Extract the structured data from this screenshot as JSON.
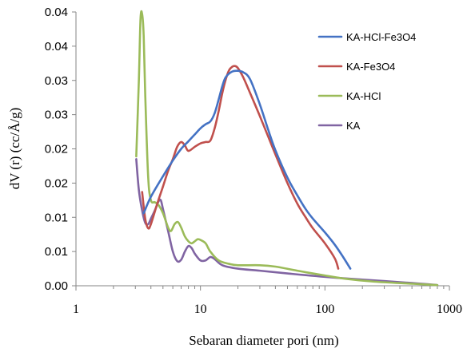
{
  "chart_data": {
    "type": "line",
    "title": "",
    "xlabel": "Sebaran diameter pori  (nm)",
    "ylabel": "dV (r) (cc/Å/g)",
    "x_scale": "log",
    "xlim": [
      1,
      1000
    ],
    "ylim": [
      0,
      0.04
    ],
    "x_ticks": [
      1,
      10,
      100,
      1000
    ],
    "x_tick_labels": [
      "1",
      "10",
      "100",
      "1000"
    ],
    "y_ticks": [
      0,
      0.005,
      0.01,
      0.015,
      0.02,
      0.025,
      0.03,
      0.035,
      0.04
    ],
    "y_tick_labels": [
      "0.00",
      "0.01",
      "0.01",
      "0.02",
      "0.02",
      "0.03",
      "0.03",
      "0.04",
      "0.04"
    ],
    "grid": false,
    "legend_position": "top-right",
    "series": [
      {
        "name": "KA-HCl-Fe3O4",
        "color": "#4472c4",
        "points": [
          [
            3.5,
            0.0106
          ],
          [
            4.0,
            0.013
          ],
          [
            5.0,
            0.016
          ],
          [
            6.0,
            0.0183
          ],
          [
            7.0,
            0.02
          ],
          [
            8.0,
            0.0211
          ],
          [
            9.0,
            0.0221
          ],
          [
            10.0,
            0.023
          ],
          [
            11.0,
            0.0236
          ],
          [
            12.0,
            0.024
          ],
          [
            13.0,
            0.0252
          ],
          [
            14.0,
            0.0272
          ],
          [
            15.0,
            0.0292
          ],
          [
            16.0,
            0.0305
          ],
          [
            18.0,
            0.0313
          ],
          [
            20.0,
            0.0314
          ],
          [
            22.0,
            0.0312
          ],
          [
            25.0,
            0.0302
          ],
          [
            30.0,
            0.0265
          ],
          [
            35.0,
            0.0228
          ],
          [
            40.0,
            0.0198
          ],
          [
            50.0,
            0.0158
          ],
          [
            60.0,
            0.0132
          ],
          [
            70.0,
            0.0112
          ],
          [
            80.0,
            0.0098
          ],
          [
            100.0,
            0.0078
          ],
          [
            120.0,
            0.006
          ],
          [
            140.0,
            0.0042
          ],
          [
            160.0,
            0.0025
          ]
        ]
      },
      {
        "name": "KA-Fe3O4",
        "color": "#c0504d",
        "points": [
          [
            3.4,
            0.0137
          ],
          [
            3.6,
            0.0098
          ],
          [
            3.8,
            0.0084
          ],
          [
            4.0,
            0.009
          ],
          [
            4.5,
            0.012
          ],
          [
            5.0,
            0.0145
          ],
          [
            5.5,
            0.0168
          ],
          [
            6.0,
            0.0185
          ],
          [
            6.5,
            0.0203
          ],
          [
            7.0,
            0.021
          ],
          [
            7.5,
            0.0205
          ],
          [
            8.0,
            0.0197
          ],
          [
            9.0,
            0.0203
          ],
          [
            10.0,
            0.0208
          ],
          [
            11.0,
            0.021
          ],
          [
            12.0,
            0.0212
          ],
          [
            13.0,
            0.023
          ],
          [
            14.0,
            0.0255
          ],
          [
            15.0,
            0.0282
          ],
          [
            16.0,
            0.0302
          ],
          [
            17.0,
            0.0315
          ],
          [
            18.0,
            0.032
          ],
          [
            19.0,
            0.0321
          ],
          [
            20.0,
            0.0318
          ],
          [
            22.0,
            0.0305
          ],
          [
            25.0,
            0.0282
          ],
          [
            30.0,
            0.0248
          ],
          [
            35.0,
            0.0218
          ],
          [
            40.0,
            0.0192
          ],
          [
            50.0,
            0.015
          ],
          [
            60.0,
            0.012
          ],
          [
            70.0,
            0.01
          ],
          [
            80.0,
            0.0084
          ],
          [
            100.0,
            0.0062
          ],
          [
            120.0,
            0.004
          ],
          [
            128.0,
            0.0025
          ]
        ]
      },
      {
        "name": "KA-HCl",
        "color": "#9bbb59",
        "points": [
          [
            3.05,
            0.0189
          ],
          [
            3.2,
            0.03
          ],
          [
            3.3,
            0.039
          ],
          [
            3.4,
            0.0397
          ],
          [
            3.5,
            0.0365
          ],
          [
            3.6,
            0.028
          ],
          [
            3.8,
            0.016
          ],
          [
            4.0,
            0.0125
          ],
          [
            4.3,
            0.0122
          ],
          [
            4.6,
            0.0118
          ],
          [
            5.0,
            0.0106
          ],
          [
            5.5,
            0.0085
          ],
          [
            5.8,
            0.008
          ],
          [
            6.2,
            0.009
          ],
          [
            6.6,
            0.0093
          ],
          [
            7.0,
            0.0085
          ],
          [
            7.5,
            0.0072
          ],
          [
            8.0,
            0.0065
          ],
          [
            8.5,
            0.0062
          ],
          [
            9.0,
            0.0065
          ],
          [
            9.5,
            0.0068
          ],
          [
            10.0,
            0.0067
          ],
          [
            11.0,
            0.0062
          ],
          [
            12.0,
            0.005
          ],
          [
            14.0,
            0.0037
          ],
          [
            17.0,
            0.0032
          ],
          [
            20.0,
            0.003
          ],
          [
            30.0,
            0.003
          ],
          [
            40.0,
            0.0028
          ],
          [
            60.0,
            0.0022
          ],
          [
            100.0,
            0.0015
          ],
          [
            150.0,
            0.001
          ],
          [
            250.0,
            0.0006
          ],
          [
            500.0,
            0.0003
          ],
          [
            800.0,
            0.0001
          ]
        ]
      },
      {
        "name": "KA",
        "color": "#8064a2",
        "points": [
          [
            3.05,
            0.0185
          ],
          [
            3.2,
            0.014
          ],
          [
            3.4,
            0.011
          ],
          [
            3.6,
            0.0092
          ],
          [
            3.8,
            0.009
          ],
          [
            4.0,
            0.0098
          ],
          [
            4.3,
            0.011
          ],
          [
            4.6,
            0.0123
          ],
          [
            4.8,
            0.0125
          ],
          [
            5.0,
            0.0112
          ],
          [
            5.5,
            0.008
          ],
          [
            6.0,
            0.005
          ],
          [
            6.5,
            0.0036
          ],
          [
            7.0,
            0.0038
          ],
          [
            7.5,
            0.005
          ],
          [
            8.0,
            0.0058
          ],
          [
            8.5,
            0.0055
          ],
          [
            9.0,
            0.0047
          ],
          [
            10.0,
            0.0037
          ],
          [
            11.0,
            0.0037
          ],
          [
            12.0,
            0.0042
          ],
          [
            13.0,
            0.0039
          ],
          [
            15.0,
            0.003
          ],
          [
            20.0,
            0.0025
          ],
          [
            30.0,
            0.0022
          ],
          [
            50.0,
            0.0018
          ],
          [
            100.0,
            0.0013
          ],
          [
            200.0,
            0.0009
          ],
          [
            500.0,
            0.0004
          ],
          [
            800.0,
            0.0001
          ]
        ]
      }
    ]
  }
}
